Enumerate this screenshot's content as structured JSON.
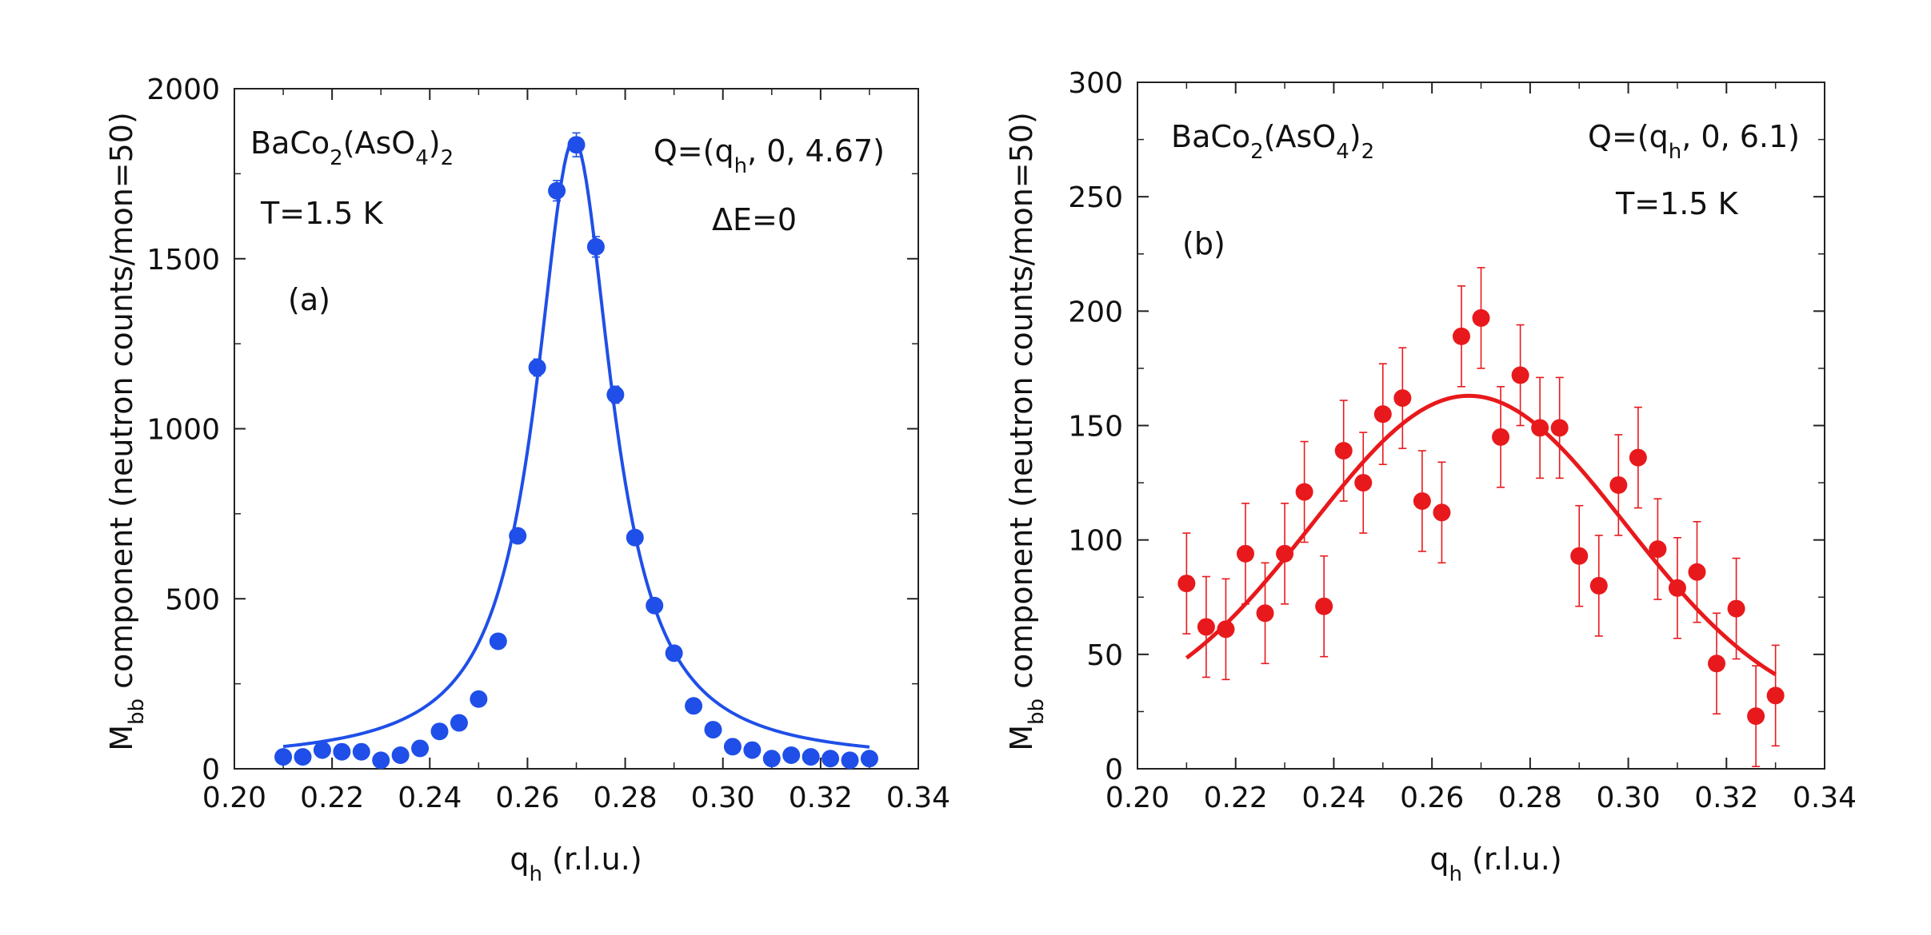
{
  "chart_data": [
    {
      "type": "scatter",
      "panel_label": "(a)",
      "compound": {
        "base": "BaCo",
        "sub1": "2",
        "mid": "(AsO",
        "sub2": "4",
        "close": ")",
        "sub3": "2"
      },
      "q_vector": {
        "prefix": "Q=(q",
        "sub": "h",
        "suffix": ", 0, 4.67)"
      },
      "temperature": "T=1.5 K",
      "energy_transfer": "ΔE=0",
      "ylabel": {
        "main": "M",
        "sub": "bb",
        "rest": " component (neutron counts/mon=50)"
      },
      "xlabel": {
        "main": "q",
        "sub": "h",
        "rest": " (r.l.u.)"
      },
      "xlim": [
        0.2,
        0.34
      ],
      "ylim": [
        0,
        2000
      ],
      "xticks": [
        "0.20",
        "0.22",
        "0.24",
        "0.26",
        "0.28",
        "0.30",
        "0.32",
        "0.34"
      ],
      "yticks": [
        "0",
        "500",
        "1000",
        "1500",
        "2000"
      ],
      "color": "#1f4fe8",
      "series": [
        {
          "name": "data",
          "x": [
            0.21,
            0.214,
            0.218,
            0.222,
            0.226,
            0.23,
            0.234,
            0.238,
            0.242,
            0.246,
            0.25,
            0.254,
            0.258,
            0.262,
            0.266,
            0.27,
            0.274,
            0.278,
            0.282,
            0.286,
            0.29,
            0.294,
            0.298,
            0.302,
            0.306,
            0.31,
            0.314,
            0.318,
            0.322,
            0.326,
            0.33
          ],
          "y": [
            35,
            35,
            55,
            50,
            50,
            25,
            40,
            60,
            110,
            135,
            205,
            375,
            685,
            1180,
            1700,
            1835,
            1535,
            1100,
            680,
            480,
            340,
            185,
            115,
            65,
            55,
            30,
            40,
            35,
            30,
            25,
            30
          ],
          "err": [
            8,
            8,
            8,
            8,
            8,
            8,
            8,
            8,
            10,
            10,
            12,
            15,
            18,
            25,
            30,
            35,
            30,
            25,
            18,
            15,
            12,
            10,
            8,
            8,
            8,
            8,
            8,
            8,
            8,
            8,
            8
          ]
        },
        {
          "name": "fit",
          "type": "lorentzian",
          "center": 0.2695,
          "hwhm": 0.0095,
          "amplitude": 1830,
          "background": 20,
          "x_range": [
            0.21,
            0.33
          ]
        }
      ]
    },
    {
      "type": "scatter",
      "panel_label": "(b)",
      "compound": {
        "base": "BaCo",
        "sub1": "2",
        "mid": "(AsO",
        "sub2": "4",
        "close": ")",
        "sub3": "2"
      },
      "q_vector": {
        "prefix": "Q=(q",
        "sub": "h",
        "suffix": ", 0, 6.1)"
      },
      "temperature": "T=1.5 K",
      "ylabel": {
        "main": "M",
        "sub": "bb",
        "rest": " component (neutron counts/mon=50)"
      },
      "xlabel": {
        "main": "q",
        "sub": "h",
        "rest": " (r.l.u.)"
      },
      "xlim": [
        0.2,
        0.34
      ],
      "ylim": [
        0,
        300
      ],
      "xticks": [
        "0.20",
        "0.22",
        "0.24",
        "0.26",
        "0.28",
        "0.30",
        "0.32",
        "0.34"
      ],
      "yticks": [
        "0",
        "50",
        "100",
        "150",
        "200",
        "250",
        "300"
      ],
      "color": "#e8191c",
      "series": [
        {
          "name": "data",
          "x": [
            0.21,
            0.214,
            0.218,
            0.222,
            0.226,
            0.23,
            0.234,
            0.238,
            0.242,
            0.246,
            0.25,
            0.254,
            0.258,
            0.262,
            0.266,
            0.27,
            0.274,
            0.278,
            0.282,
            0.286,
            0.29,
            0.294,
            0.298,
            0.302,
            0.306,
            0.31,
            0.314,
            0.318,
            0.322,
            0.326,
            0.33
          ],
          "y": [
            81,
            62,
            61,
            94,
            68,
            94,
            121,
            71,
            139,
            125,
            155,
            162,
            117,
            112,
            189,
            197,
            145,
            172,
            149,
            149,
            93,
            80,
            124,
            136,
            96,
            79,
            86,
            46,
            70,
            23,
            32
          ],
          "err": [
            22,
            22,
            22,
            22,
            22,
            22,
            22,
            22,
            22,
            22,
            22,
            22,
            22,
            22,
            22,
            22,
            22,
            22,
            22,
            22,
            22,
            22,
            22,
            22,
            22,
            22,
            22,
            22,
            22,
            22,
            22
          ]
        },
        {
          "name": "fit",
          "type": "gaussian",
          "center": 0.2675,
          "sigma": 0.032,
          "amplitude": 143,
          "background": 20,
          "x_range": [
            0.21,
            0.33
          ]
        }
      ]
    }
  ]
}
